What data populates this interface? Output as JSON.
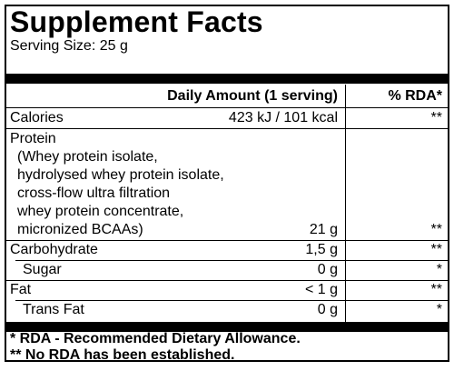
{
  "title": "Supplement Facts",
  "serving_size": "Serving Size: 25 g",
  "header": {
    "amount": "Daily Amount (1 serving)",
    "rda": "% RDA*"
  },
  "rows": {
    "calories": {
      "label": "Calories",
      "amount": "423 kJ / 101 kcal",
      "rda": "**"
    },
    "protein": {
      "label": "Protein",
      "sources": [
        "(Whey protein isolate,",
        "hydrolysed whey protein isolate,",
        "cross-flow ultra filtration",
        "whey protein concentrate,",
        "micronized BCAAs)"
      ],
      "amount": "21 g",
      "rda": "**"
    },
    "carbohydrate": {
      "label": "Carbohydrate",
      "amount": "1,5 g",
      "rda": "**"
    },
    "sugar": {
      "label": "Sugar",
      "amount": "0 g",
      "rda": "*"
    },
    "fat": {
      "label": "Fat",
      "amount": "< 1 g",
      "rda": "**"
    },
    "trans_fat": {
      "label": "Trans Fat",
      "amount": "0 g",
      "rda": "*"
    }
  },
  "footnotes": [
    "* RDA - Recommended Dietary Allowance.",
    "** No RDA has been established."
  ]
}
